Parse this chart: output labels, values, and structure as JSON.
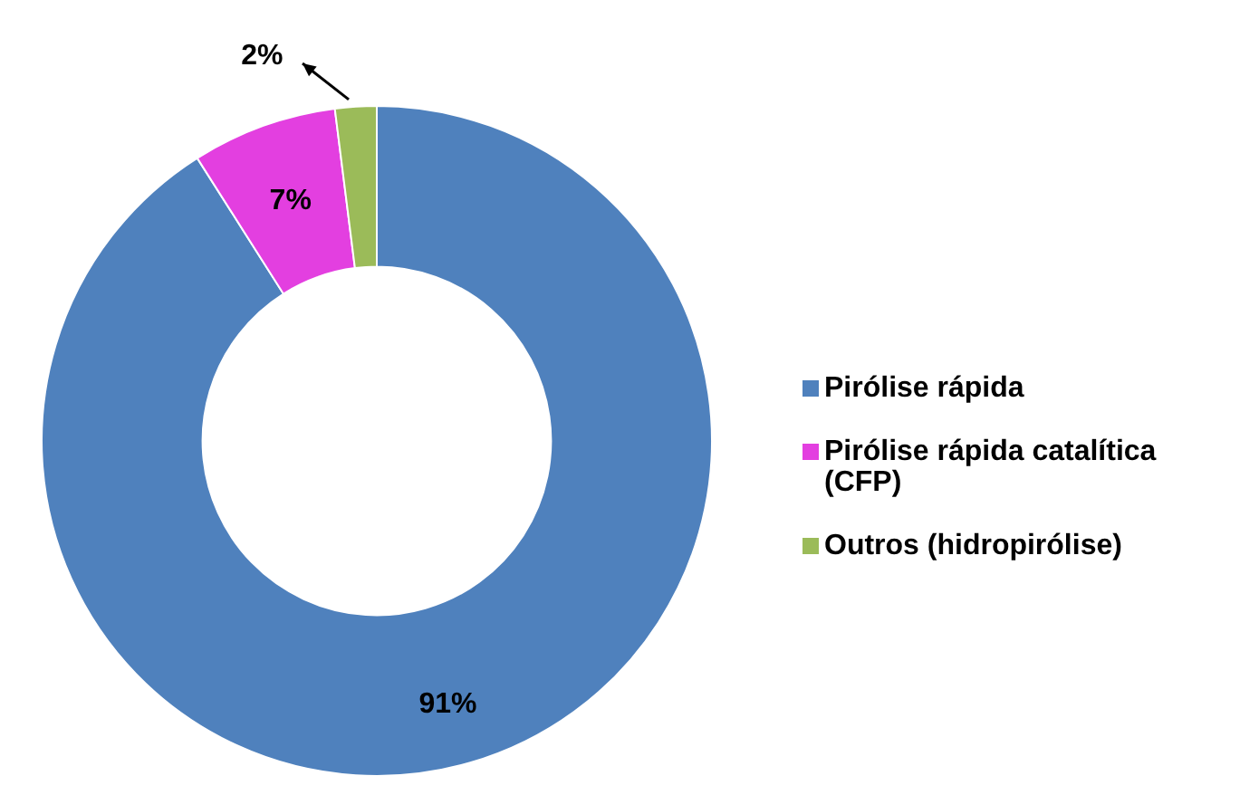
{
  "chart_data": {
    "type": "donut",
    "categories": [
      "Pirólise rápida",
      "Pirólise rápida catalítica (CFP)",
      "Outros (hidropirólise)"
    ],
    "values": [
      91,
      7,
      2
    ],
    "colors": [
      "#4f81bd",
      "#e33fe0",
      "#9bbb59"
    ],
    "value_labels": [
      "91%",
      "7%",
      "2%"
    ],
    "legend": "right"
  }
}
